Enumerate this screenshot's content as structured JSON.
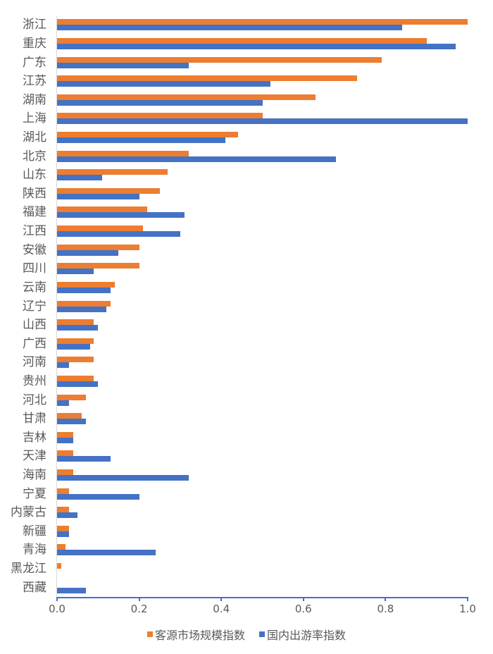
{
  "chart_data": {
    "type": "bar",
    "orientation": "horizontal",
    "title": "",
    "xlabel": "",
    "ylabel": "",
    "xlim": [
      0,
      1.0
    ],
    "x_ticks": [
      "0.0",
      "0.2",
      "0.4",
      "0.6",
      "0.8",
      "1.0"
    ],
    "grid": false,
    "legend_position": "bottom",
    "categories": [
      "浙江",
      "重庆",
      "广东",
      "江苏",
      "湖南",
      "上海",
      "湖北",
      "北京",
      "山东",
      "陕西",
      "福建",
      "江西",
      "安徽",
      "四川",
      "云南",
      "辽宁",
      "山西",
      "广西",
      "河南",
      "贵州",
      "河北",
      "甘肃",
      "吉林",
      "天津",
      "海南",
      "宁夏",
      "内蒙古",
      "新疆",
      "青海",
      "黑龙江",
      "西藏"
    ],
    "series": [
      {
        "name": "客源市场规模指数",
        "color": "#ed7d31",
        "values": [
          1.0,
          0.9,
          0.79,
          0.73,
          0.63,
          0.5,
          0.44,
          0.32,
          0.27,
          0.25,
          0.22,
          0.21,
          0.2,
          0.2,
          0.14,
          0.13,
          0.09,
          0.09,
          0.09,
          0.09,
          0.07,
          0.06,
          0.04,
          0.04,
          0.04,
          0.03,
          0.03,
          0.03,
          0.02,
          0.01,
          0.0
        ]
      },
      {
        "name": "国内出游率指数",
        "color": "#4472c4",
        "values": [
          0.84,
          0.97,
          0.32,
          0.52,
          0.5,
          1.0,
          0.41,
          0.68,
          0.11,
          0.2,
          0.31,
          0.3,
          0.15,
          0.09,
          0.13,
          0.12,
          0.1,
          0.08,
          0.03,
          0.1,
          0.03,
          0.07,
          0.04,
          0.13,
          0.32,
          0.2,
          0.05,
          0.03,
          0.24,
          0.0,
          0.07
        ]
      }
    ]
  }
}
